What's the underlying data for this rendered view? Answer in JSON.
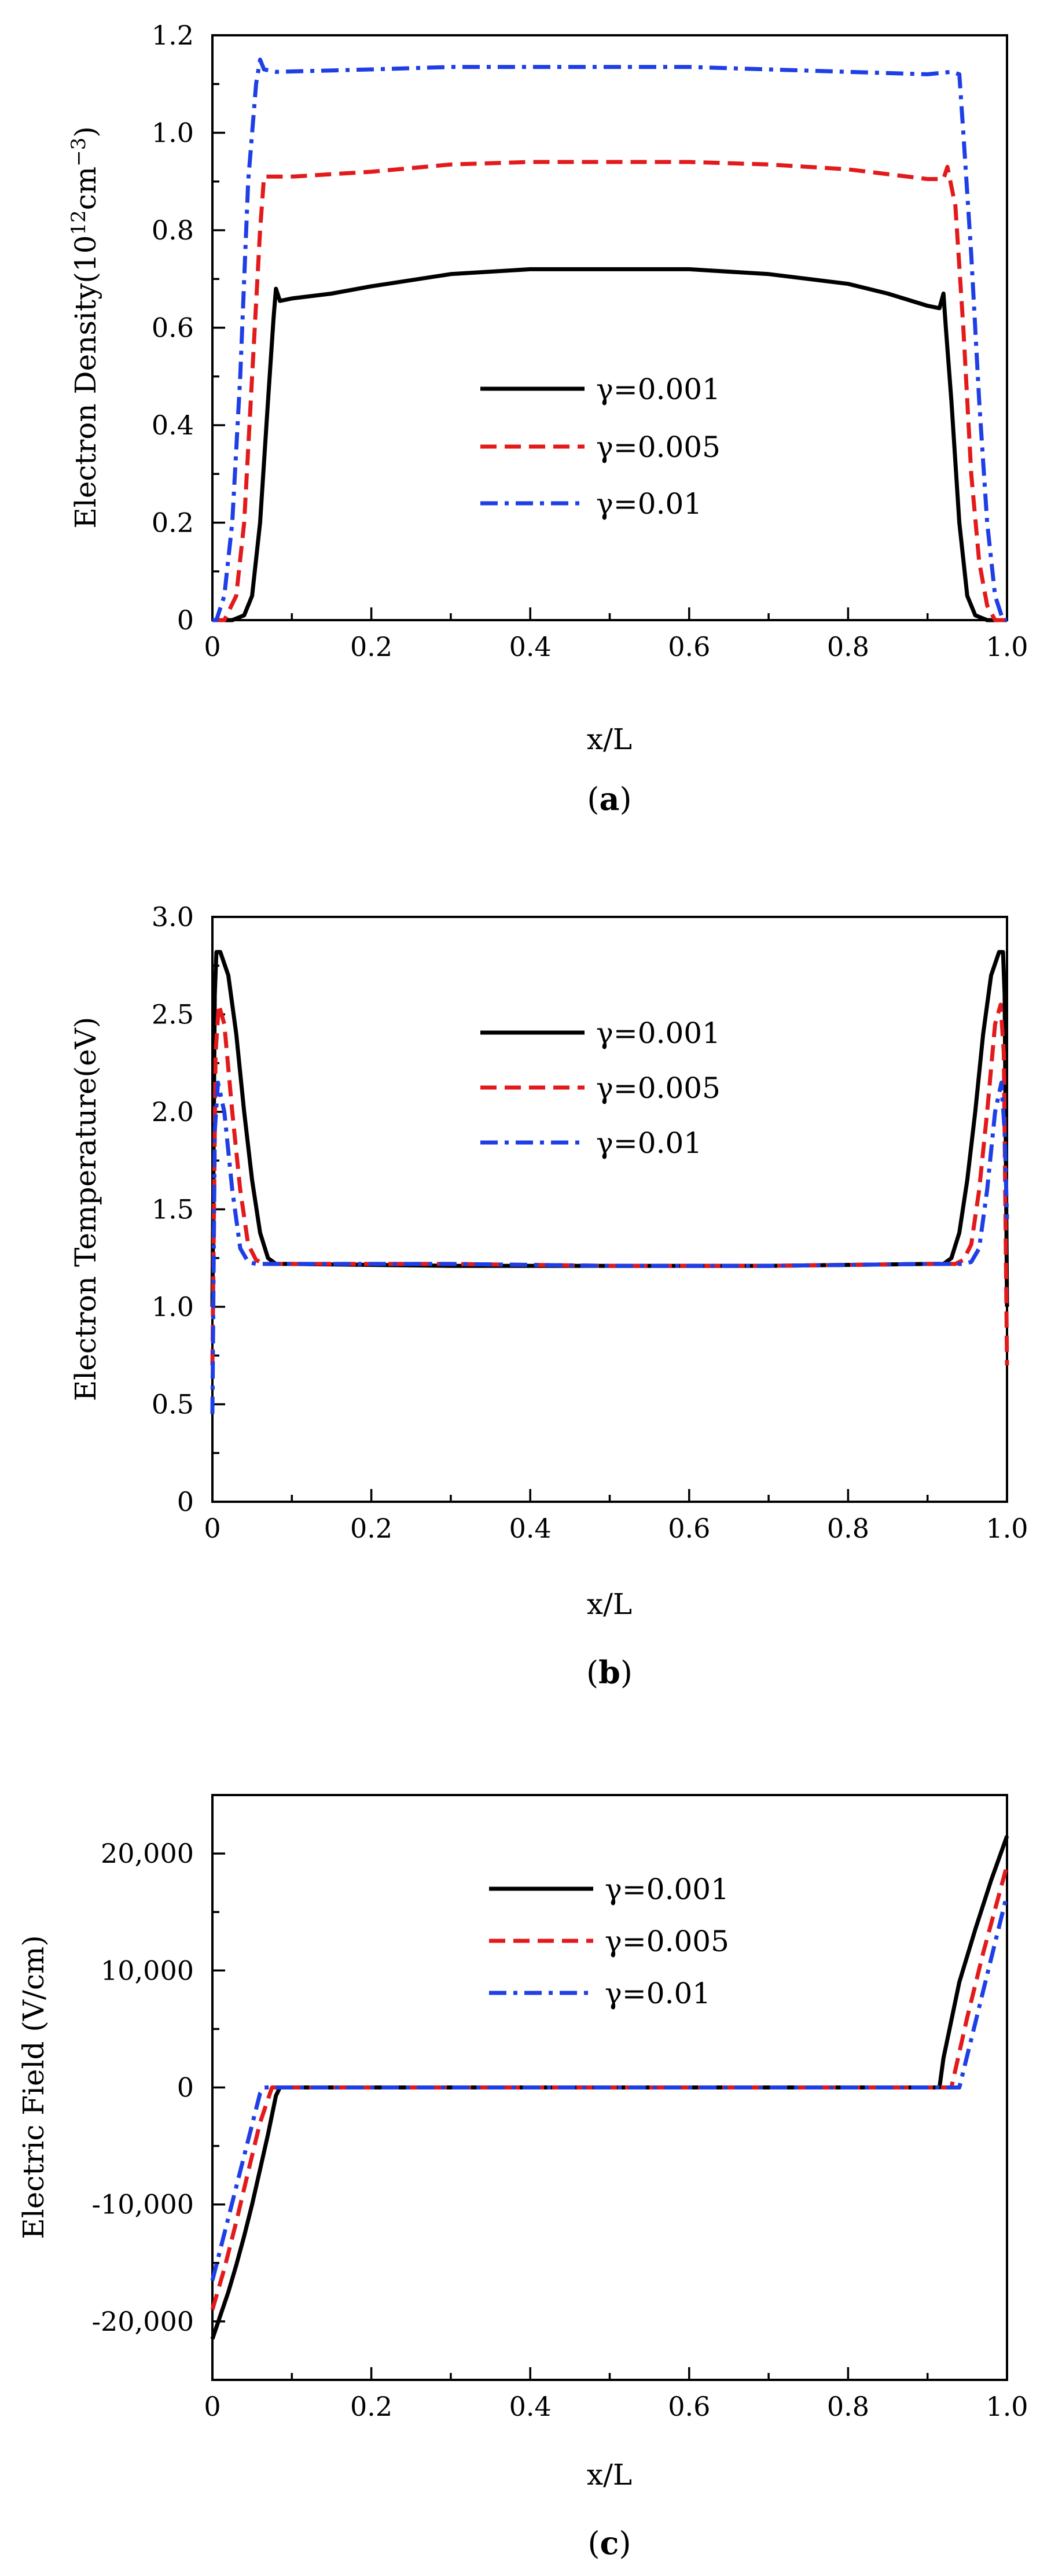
{
  "figure": {
    "panels": [
      "a",
      "b",
      "c"
    ]
  },
  "chart_data": [
    {
      "type": "line",
      "panel": "a",
      "caption": {
        "open": "(",
        "letter": "a",
        "close": ")"
      },
      "xlabel": "x/L",
      "ylabel": {
        "text": "Electron  Density(10",
        "sup1": "12",
        "mid": "cm",
        "sup2": "−3",
        "end": ")"
      },
      "xlim": [
        0,
        1.0
      ],
      "ylim": [
        0,
        1.2
      ],
      "xticks": [
        "0",
        "0.2",
        "0.4",
        "0.6",
        "0.8",
        "1.0"
      ],
      "yticks": [
        "0",
        "0.2",
        "0.4",
        "0.6",
        "0.8",
        "1.0",
        "1.2"
      ],
      "legend_position": "center",
      "series": [
        {
          "name": "γ=0.001",
          "color": "#000000",
          "style": "solid",
          "x": [
            0.0,
            0.025,
            0.04,
            0.05,
            0.06,
            0.07,
            0.077,
            0.08,
            0.085,
            0.1,
            0.15,
            0.2,
            0.3,
            0.4,
            0.5,
            0.6,
            0.7,
            0.8,
            0.85,
            0.9,
            0.915,
            0.92,
            0.923,
            0.93,
            0.94,
            0.95,
            0.96,
            0.975,
            1.0
          ],
          "y": [
            0.0,
            0.0,
            0.01,
            0.05,
            0.2,
            0.45,
            0.62,
            0.68,
            0.655,
            0.66,
            0.67,
            0.685,
            0.71,
            0.72,
            0.72,
            0.72,
            0.71,
            0.69,
            0.67,
            0.645,
            0.64,
            0.67,
            0.6,
            0.45,
            0.2,
            0.05,
            0.01,
            0.0,
            0.0
          ]
        },
        {
          "name": "γ=0.005",
          "color": "#e31a1c",
          "style": "dashed",
          "x": [
            0.0,
            0.015,
            0.03,
            0.04,
            0.05,
            0.06,
            0.065,
            0.07,
            0.1,
            0.2,
            0.3,
            0.4,
            0.5,
            0.6,
            0.7,
            0.8,
            0.9,
            0.92,
            0.925,
            0.935,
            0.945,
            0.955,
            0.965,
            0.975,
            0.985,
            1.0
          ],
          "y": [
            0.0,
            0.0,
            0.05,
            0.2,
            0.5,
            0.8,
            0.91,
            0.91,
            0.91,
            0.92,
            0.935,
            0.94,
            0.94,
            0.94,
            0.935,
            0.925,
            0.905,
            0.905,
            0.93,
            0.85,
            0.6,
            0.3,
            0.12,
            0.03,
            0.0,
            0.0
          ]
        },
        {
          "name": "γ=0.01",
          "color": "#1f3fe6",
          "style": "dashdot",
          "x": [
            0.0,
            0.005,
            0.015,
            0.025,
            0.035,
            0.045,
            0.055,
            0.06,
            0.065,
            0.08,
            0.2,
            0.3,
            0.4,
            0.5,
            0.6,
            0.7,
            0.8,
            0.9,
            0.93,
            0.94,
            0.945,
            0.955,
            0.965,
            0.975,
            0.985,
            0.995,
            1.0
          ],
          "y": [
            0.0,
            0.0,
            0.05,
            0.2,
            0.5,
            0.9,
            1.1,
            1.15,
            1.13,
            1.125,
            1.13,
            1.135,
            1.135,
            1.135,
            1.135,
            1.13,
            1.125,
            1.12,
            1.125,
            1.12,
            1.0,
            0.75,
            0.45,
            0.2,
            0.05,
            0.0,
            0.0
          ]
        }
      ]
    },
    {
      "type": "line",
      "panel": "b",
      "caption": {
        "open": "(",
        "letter": "b",
        "close": ")"
      },
      "xlabel": "x/L",
      "ylabel": {
        "text": "Electron Temperature(eV)"
      },
      "xlim": [
        0,
        1.0
      ],
      "ylim": [
        0,
        3.0
      ],
      "xticks": [
        "0",
        "0.2",
        "0.4",
        "0.6",
        "0.8",
        "1.0"
      ],
      "yticks": [
        "0",
        "0.5",
        "1.0",
        "1.5",
        "2.0",
        "2.5",
        "3.0"
      ],
      "legend_position": "top-center",
      "series": [
        {
          "name": "γ=0.001",
          "color": "#000000",
          "style": "solid",
          "x": [
            0.0,
            0.003,
            0.005,
            0.01,
            0.02,
            0.03,
            0.04,
            0.05,
            0.06,
            0.07,
            0.08,
            0.1,
            0.3,
            0.5,
            0.7,
            0.9,
            0.92,
            0.93,
            0.94,
            0.95,
            0.96,
            0.97,
            0.98,
            0.99,
            0.995,
            0.997,
            1.0
          ],
          "y": [
            1.0,
            2.6,
            2.82,
            2.82,
            2.7,
            2.4,
            2.0,
            1.65,
            1.38,
            1.25,
            1.22,
            1.22,
            1.21,
            1.21,
            1.21,
            1.22,
            1.22,
            1.25,
            1.38,
            1.65,
            2.0,
            2.4,
            2.7,
            2.82,
            2.82,
            2.6,
            1.0
          ]
        },
        {
          "name": "γ=0.005",
          "color": "#e31a1c",
          "style": "dashed",
          "x": [
            0.0,
            0.004,
            0.008,
            0.015,
            0.025,
            0.035,
            0.045,
            0.055,
            0.065,
            0.1,
            0.3,
            0.5,
            0.7,
            0.9,
            0.935,
            0.945,
            0.955,
            0.965,
            0.975,
            0.985,
            0.992,
            0.996,
            1.0
          ],
          "y": [
            0.7,
            2.3,
            2.55,
            2.45,
            2.0,
            1.6,
            1.32,
            1.24,
            1.22,
            1.22,
            1.22,
            1.21,
            1.21,
            1.22,
            1.22,
            1.24,
            1.32,
            1.6,
            2.0,
            2.45,
            2.55,
            2.3,
            0.7
          ]
        },
        {
          "name": "γ=0.01",
          "color": "#1f3fe6",
          "style": "dashdot",
          "x": [
            0.0,
            0.003,
            0.007,
            0.015,
            0.025,
            0.035,
            0.045,
            0.055,
            0.1,
            0.3,
            0.5,
            0.7,
            0.9,
            0.945,
            0.955,
            0.965,
            0.975,
            0.985,
            0.993,
            0.997,
            1.0
          ],
          "y": [
            0.45,
            1.9,
            2.15,
            2.0,
            1.6,
            1.3,
            1.23,
            1.22,
            1.22,
            1.22,
            1.21,
            1.21,
            1.22,
            1.22,
            1.23,
            1.3,
            1.6,
            2.0,
            2.15,
            1.9,
            1.45
          ]
        }
      ]
    },
    {
      "type": "line",
      "panel": "c",
      "caption": {
        "open": "(",
        "letter": "c",
        "close": ")"
      },
      "xlabel": "x/L",
      "ylabel": {
        "text": "Electric  Field (V/cm)"
      },
      "xlim": [
        0,
        1.0
      ],
      "ylim": [
        -25000,
        25000
      ],
      "yticks_values": [
        -20000,
        -10000,
        0,
        10000,
        20000
      ],
      "xticks": [
        "0",
        "0.2",
        "0.4",
        "0.6",
        "0.8",
        "1.0"
      ],
      "yticks": [
        "-20,000",
        "-10,000",
        "0",
        "10,000",
        "20,000"
      ],
      "legend_position": "top-center",
      "series": [
        {
          "name": "γ=0.001",
          "color": "#000000",
          "style": "solid",
          "x": [
            0.0,
            0.01,
            0.02,
            0.03,
            0.04,
            0.05,
            0.06,
            0.07,
            0.08,
            0.085,
            0.1,
            0.5,
            0.9,
            0.915,
            0.92,
            0.94,
            0.96,
            0.98,
            1.0
          ],
          "y": [
            -21500,
            -19500,
            -17500,
            -15200,
            -12700,
            -10000,
            -7000,
            -4000,
            -700,
            0,
            0,
            0,
            0,
            0,
            2500,
            9000,
            13500,
            17700,
            21500
          ]
        },
        {
          "name": "γ=0.005",
          "color": "#e31a1c",
          "style": "dashed",
          "x": [
            0.0,
            0.015,
            0.03,
            0.045,
            0.06,
            0.075,
            0.08,
            0.5,
            0.925,
            0.93,
            0.95,
            0.97,
            0.99,
            1.0
          ],
          "y": [
            -19000,
            -15500,
            -11500,
            -7200,
            -3000,
            0,
            0,
            0,
            0,
            0,
            6000,
            11500,
            16500,
            19000
          ]
        },
        {
          "name": "γ=0.01",
          "color": "#1f3fe6",
          "style": "dashdot",
          "x": [
            0.0,
            0.015,
            0.03,
            0.045,
            0.06,
            0.065,
            0.5,
            0.93,
            0.94,
            0.96,
            0.98,
            1.0
          ],
          "y": [
            -16500,
            -12500,
            -8500,
            -4500,
            -500,
            0,
            0,
            0,
            0,
            5500,
            11000,
            16500
          ]
        }
      ]
    }
  ]
}
